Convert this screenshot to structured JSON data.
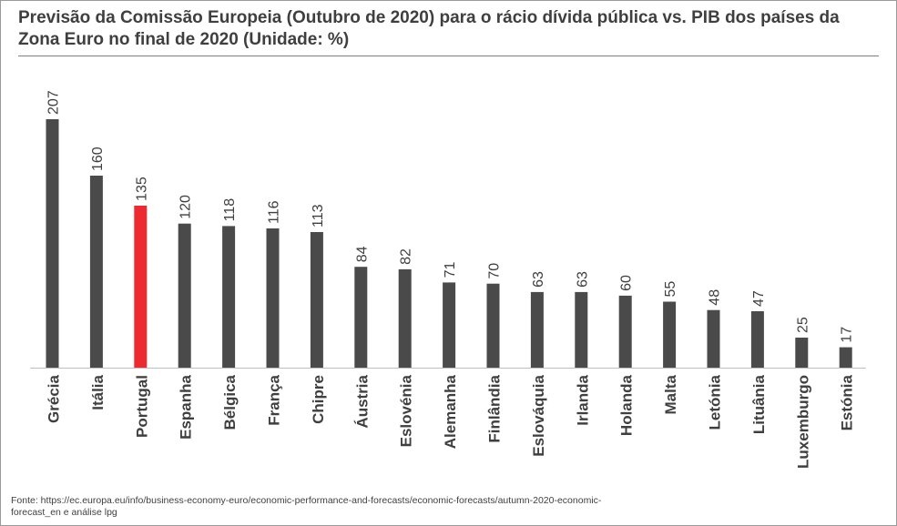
{
  "title": "Previsão da Comissão Europeia (Outubro de 2020) para o rácio dívida pública vs. PIB dos países da Zona Euro no final de 2020 (Unidade: %)",
  "source": "Fonte: https://ec.europa.eu/info/business-economy-euro/economic-performance-and-forecasts/economic-forecasts/autumn-2020-economic-forecast_en e análise lpg",
  "colors": {
    "bar": "#4a4a4a",
    "highlight": "#ed2a2f",
    "baseline": "#bfbfbf",
    "text": "#3f3f3f"
  },
  "chart_data": {
    "type": "bar",
    "title": "Previsão da Comissão Europeia (Outubro de 2020) para o rácio dívida pública vs. PIB dos países da Zona Euro no final de 2020 (Unidade: %)",
    "xlabel": "",
    "ylabel": "",
    "ylim": [
      0,
      210
    ],
    "grid": false,
    "legend": "none",
    "data_labels": true,
    "highlight_category": "Portugal",
    "categories": [
      "Grécia",
      "Itália",
      "Portugal",
      "Espanha",
      "Bélgica",
      "França",
      "Chipre",
      "Áustria",
      "Eslovénia",
      "Alemanha",
      "Finlândia",
      "Eslováquia",
      "Irlanda",
      "Holanda",
      "Malta",
      "Letónia",
      "Lituânia",
      "Luxemburgo",
      "Estónia"
    ],
    "values": [
      207,
      160,
      135,
      120,
      118,
      116,
      113,
      84,
      82,
      71,
      70,
      63,
      63,
      60,
      55,
      48,
      47,
      25,
      17
    ]
  }
}
